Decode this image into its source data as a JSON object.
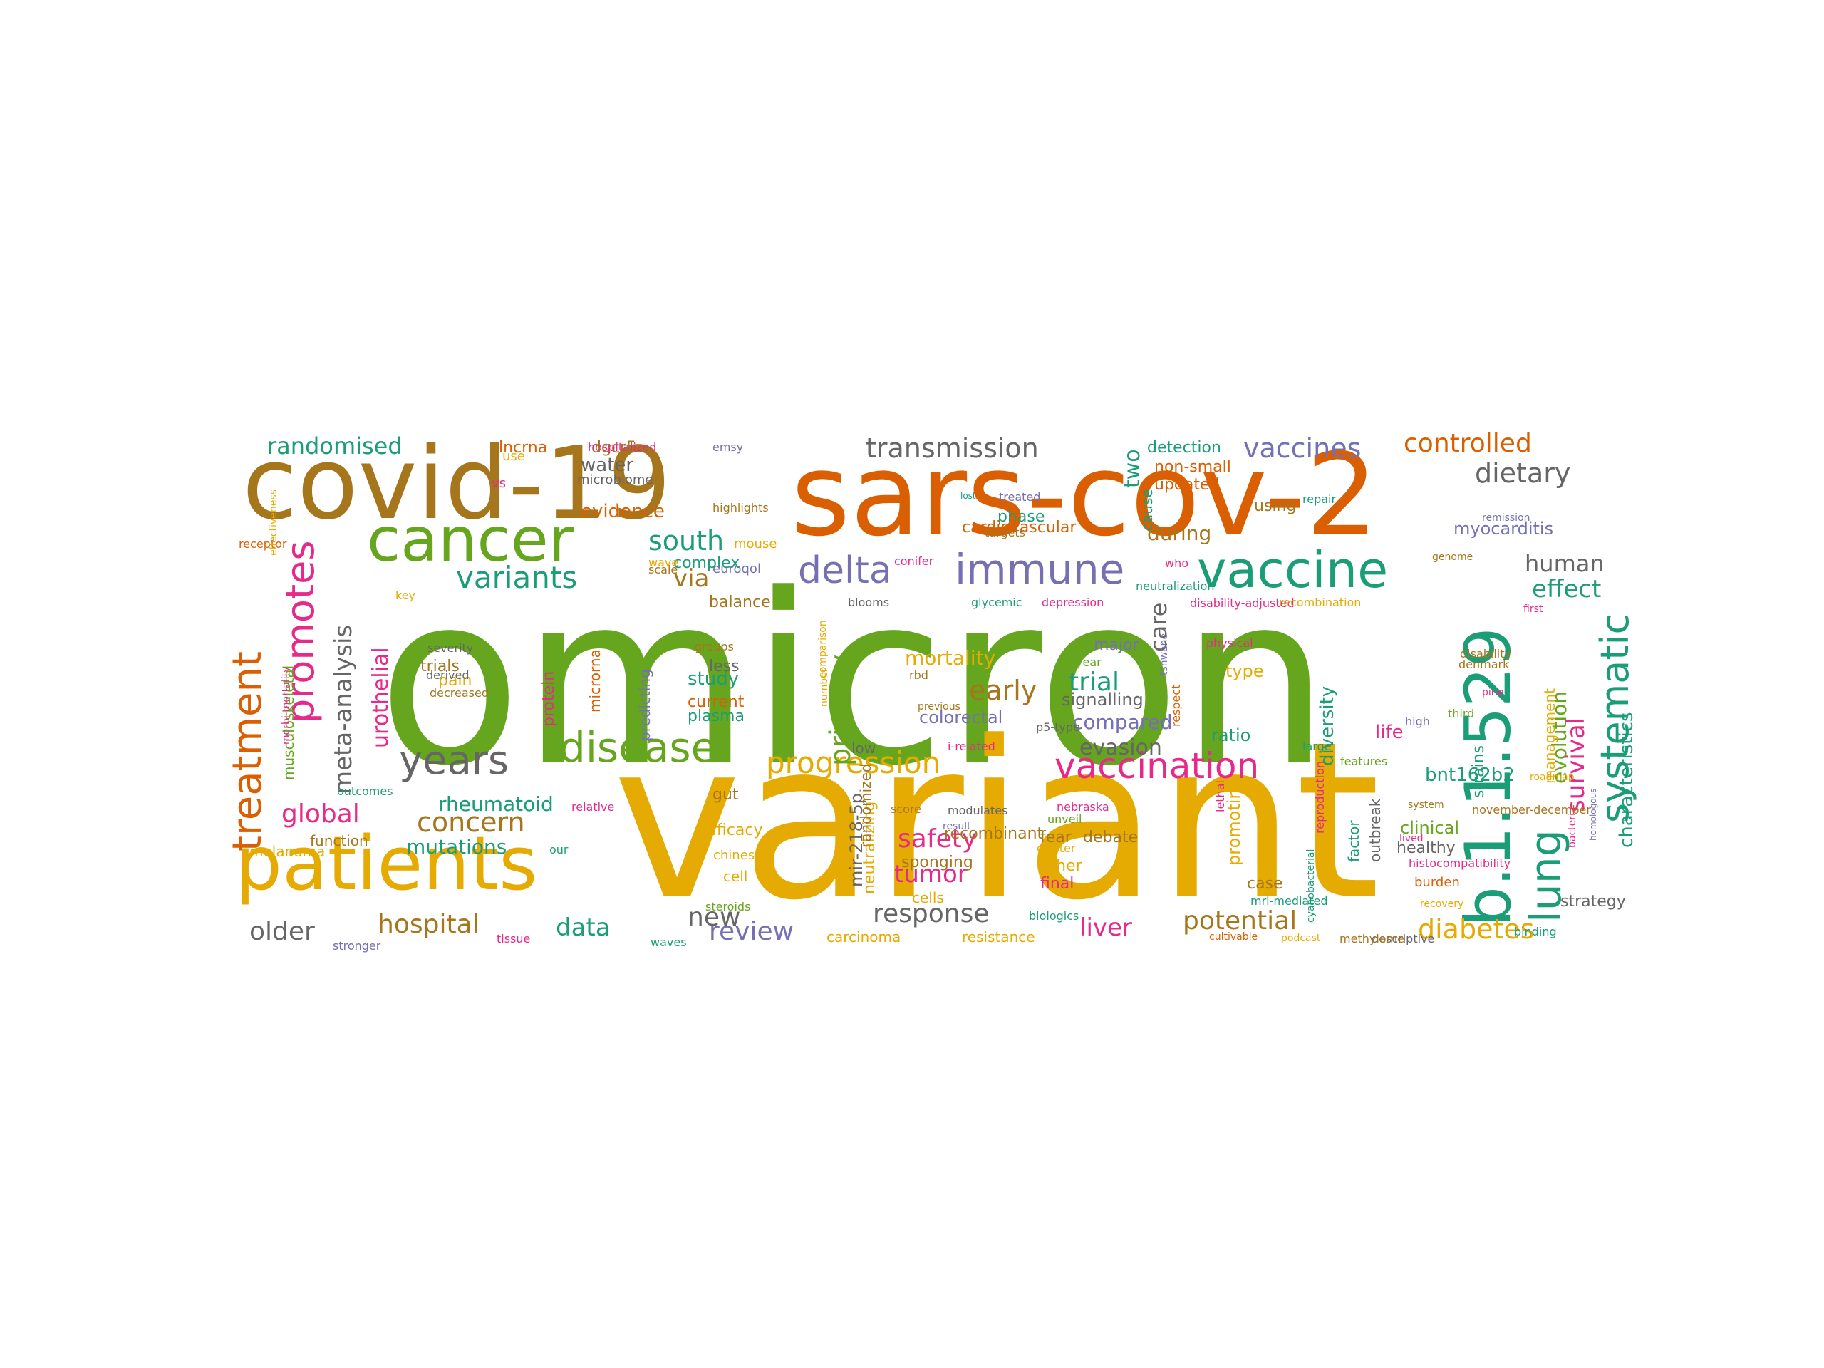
{
  "palette": {
    "green": "#66a61e",
    "orange": "#d95f02",
    "gold": "#e6ab02",
    "brown": "#a6761d",
    "teal": "#1b9e77",
    "purple": "#7570b3",
    "pink": "#e7298a",
    "gray": "#666666"
  },
  "words": [
    {
      "text": "omicron",
      "color": "green",
      "vertical": false
    },
    {
      "text": "variant",
      "color": "gold",
      "vertical": false
    },
    {
      "text": "covid-19",
      "color": "brown",
      "vertical": false
    },
    {
      "text": "sars-cov-2",
      "color": "orange",
      "vertical": false
    },
    {
      "text": "b.1.1.529",
      "color": "teal",
      "vertical": true
    },
    {
      "text": "patients",
      "color": "gold",
      "vertical": false
    },
    {
      "text": "cancer",
      "color": "green",
      "vertical": false
    },
    {
      "text": "vaccine",
      "color": "teal",
      "vertical": false
    },
    {
      "text": "disease",
      "color": "green",
      "vertical": false
    },
    {
      "text": "years",
      "color": "gray",
      "vertical": false
    },
    {
      "text": "immune",
      "color": "purple",
      "vertical": false
    },
    {
      "text": "vaccination",
      "color": "pink",
      "vertical": false
    },
    {
      "text": "delta",
      "color": "purple",
      "vertical": false
    },
    {
      "text": "progression",
      "color": "gold",
      "vertical": false
    },
    {
      "text": "treatment",
      "color": "orange",
      "vertical": true
    },
    {
      "text": "promotes",
      "color": "pink",
      "vertical": true
    },
    {
      "text": "lung",
      "color": "teal",
      "vertical": true
    },
    {
      "text": "systematic",
      "color": "teal",
      "vertical": true
    },
    {
      "text": "transmission",
      "color": "gray",
      "vertical": false
    },
    {
      "text": "controlled",
      "color": "orange",
      "vertical": false
    },
    {
      "text": "vaccines",
      "color": "purple",
      "vertical": false
    },
    {
      "text": "randomised",
      "color": "teal",
      "vertical": false
    },
    {
      "text": "dietary",
      "color": "gray",
      "vertical": false
    },
    {
      "text": "variants",
      "color": "teal",
      "vertical": false
    },
    {
      "text": "south",
      "color": "teal",
      "vertical": false
    },
    {
      "text": "via",
      "color": "brown",
      "vertical": false
    },
    {
      "text": "meta-analysis",
      "color": "gray",
      "vertical": true
    },
    {
      "text": "urothelial",
      "color": "pink",
      "vertical": true
    },
    {
      "text": "care",
      "color": "gray",
      "vertical": true
    },
    {
      "text": "two",
      "color": "teal",
      "vertical": true
    },
    {
      "text": "human",
      "color": "gray",
      "vertical": false
    },
    {
      "text": "effect",
      "color": "teal",
      "vertical": false
    },
    {
      "text": "survival",
      "color": "pink",
      "vertical": true
    },
    {
      "text": "evolution",
      "color": "green",
      "vertical": true
    },
    {
      "text": "characteristics",
      "color": "teal",
      "vertical": true
    },
    {
      "text": "diversity",
      "color": "teal",
      "vertical": true
    },
    {
      "text": "safety",
      "color": "pink",
      "vertical": false
    },
    {
      "text": "tumor",
      "color": "pink",
      "vertical": false
    },
    {
      "text": "mortality",
      "color": "gold",
      "vertical": false
    },
    {
      "text": "early",
      "color": "brown",
      "vertical": false
    },
    {
      "text": "trial",
      "color": "teal",
      "vertical": false
    },
    {
      "text": "primary",
      "color": "green",
      "vertical": true
    },
    {
      "text": "concern",
      "color": "brown",
      "vertical": false
    },
    {
      "text": "global",
      "color": "pink",
      "vertical": false
    },
    {
      "text": "rheumatoid",
      "color": "teal",
      "vertical": false
    },
    {
      "text": "mutations",
      "color": "teal",
      "vertical": false
    },
    {
      "text": "hospital",
      "color": "brown",
      "vertical": false
    },
    {
      "text": "older",
      "color": "gray",
      "vertical": false
    },
    {
      "text": "data",
      "color": "teal",
      "vertical": false
    },
    {
      "text": "new",
      "color": "gray",
      "vertical": false
    },
    {
      "text": "review",
      "color": "purple",
      "vertical": false
    },
    {
      "text": "response",
      "color": "gray",
      "vertical": false
    },
    {
      "text": "liver",
      "color": "pink",
      "vertical": false
    },
    {
      "text": "potential",
      "color": "brown",
      "vertical": false
    },
    {
      "text": "diabetes",
      "color": "gold",
      "vertical": false
    },
    {
      "text": "study",
      "color": "teal",
      "vertical": false
    },
    {
      "text": "water",
      "color": "gray",
      "vertical": false
    },
    {
      "text": "evidence",
      "color": "orange",
      "vertical": false
    },
    {
      "text": "during",
      "color": "brown",
      "vertical": false
    },
    {
      "text": "compared",
      "color": "purple",
      "vertical": false
    },
    {
      "text": "evasion",
      "color": "gray",
      "vertical": false
    },
    {
      "text": "bnt162b2",
      "color": "teal",
      "vertical": false
    },
    {
      "text": "life",
      "color": "pink",
      "vertical": false
    },
    {
      "text": "ratio",
      "color": "teal",
      "vertical": false
    },
    {
      "text": "type",
      "color": "gold",
      "vertical": false
    },
    {
      "text": "myocarditis",
      "color": "purple",
      "vertical": false
    },
    {
      "text": "using",
      "color": "brown",
      "vertical": false
    },
    {
      "text": "lncrna",
      "color": "orange",
      "vertical": false
    },
    {
      "text": "dgcr5",
      "color": "brown",
      "vertical": false
    },
    {
      "text": "detection",
      "color": "teal",
      "vertical": false
    },
    {
      "text": "non-small",
      "color": "orange",
      "vertical": false
    },
    {
      "text": "updated",
      "color": "orange",
      "vertical": false
    },
    {
      "text": "signalling",
      "color": "gray",
      "vertical": false
    },
    {
      "text": "major",
      "color": "purple",
      "vertical": false
    },
    {
      "text": "colorectal",
      "color": "purple",
      "vertical": false
    },
    {
      "text": "complex",
      "color": "teal",
      "vertical": false
    },
    {
      "text": "balance",
      "color": "brown",
      "vertical": false
    },
    {
      "text": "plasma",
      "color": "teal",
      "vertical": false
    },
    {
      "text": "current",
      "color": "orange",
      "vertical": false
    },
    {
      "text": "less",
      "color": "gray",
      "vertical": false
    },
    {
      "text": "trials",
      "color": "brown",
      "vertical": false
    },
    {
      "text": "pain",
      "color": "gold",
      "vertical": false
    },
    {
      "text": "function",
      "color": "brown",
      "vertical": false
    },
    {
      "text": "melanoma",
      "color": "gold",
      "vertical": false
    },
    {
      "text": "microbiome",
      "color": "gray",
      "vertical": false
    },
    {
      "text": "clinical",
      "color": "green",
      "vertical": false
    },
    {
      "text": "healthy",
      "color": "gray",
      "vertical": false
    },
    {
      "text": "strategy",
      "color": "gray",
      "vertical": false
    },
    {
      "text": "cells",
      "color": "gold",
      "vertical": false
    },
    {
      "text": "case",
      "color": "brown",
      "vertical": false
    },
    {
      "text": "final",
      "color": "pink",
      "vertical": false
    },
    {
      "text": "other",
      "color": "gold",
      "vertical": false
    },
    {
      "text": "fear",
      "color": "brown",
      "vertical": false
    },
    {
      "text": "debate",
      "color": "brown",
      "vertical": false
    },
    {
      "text": "phase",
      "color": "teal",
      "vertical": false
    },
    {
      "text": "cardiovascular",
      "color": "orange",
      "vertical": false
    },
    {
      "text": "efficacy",
      "color": "gold",
      "vertical": false
    },
    {
      "text": "sponging",
      "color": "brown",
      "vertical": false
    },
    {
      "text": "recombinant",
      "color": "brown",
      "vertical": false
    },
    {
      "text": "resistance",
      "color": "gold",
      "vertical": false
    },
    {
      "text": "carcinoma",
      "color": "gold",
      "vertical": false
    },
    {
      "text": "burden",
      "color": "orange",
      "vertical": false
    },
    {
      "text": "gut",
      "color": "brown",
      "vertical": false
    },
    {
      "text": "cell",
      "color": "gold",
      "vertical": false
    },
    {
      "text": "low",
      "color": "gray",
      "vertical": false
    },
    {
      "text": "mir-218-5p",
      "color": "gray",
      "vertical": true
    },
    {
      "text": "promoting",
      "color": "gold",
      "vertical": true
    },
    {
      "text": "protein",
      "color": "pink",
      "vertical": true
    },
    {
      "text": "microrna",
      "color": "orange",
      "vertical": true
    },
    {
      "text": "predicting",
      "color": "purple",
      "vertical": true
    },
    {
      "text": "neutralizing",
      "color": "gold",
      "vertical": true
    },
    {
      "text": "musculoskeletal",
      "color": "green",
      "vertical": true
    },
    {
      "text": "management",
      "color": "gold",
      "vertical": true
    },
    {
      "text": "strains",
      "color": "teal",
      "vertical": true
    },
    {
      "text": "outbreak",
      "color": "gray",
      "vertical": true
    },
    {
      "text": "factor",
      "color": "teal",
      "vertical": true
    },
    {
      "text": "randomized",
      "color": "brown",
      "vertical": true
    },
    {
      "text": "cause",
      "color": "teal",
      "vertical": true
    },
    {
      "text": "use",
      "color": "gold",
      "vertical": false
    },
    {
      "text": "vs",
      "color": "pink",
      "vertical": false
    },
    {
      "text": "hospitalized",
      "color": "pink",
      "vertical": false
    },
    {
      "text": "emsy",
      "color": "purple",
      "vertical": false
    },
    {
      "text": "highlights",
      "color": "brown",
      "vertical": false
    },
    {
      "text": "mouse",
      "color": "gold",
      "vertical": false
    },
    {
      "text": "euroqol",
      "color": "purple",
      "vertical": false
    },
    {
      "text": "scale",
      "color": "brown",
      "vertical": false
    },
    {
      "text": "wave",
      "color": "gold",
      "vertical": false
    },
    {
      "text": "conifer",
      "color": "pink",
      "vertical": false
    },
    {
      "text": "blooms",
      "color": "gray",
      "vertical": false
    },
    {
      "text": "groups",
      "color": "brown",
      "vertical": false
    },
    {
      "text": "receptor",
      "color": "orange",
      "vertical": false
    },
    {
      "text": "key",
      "color": "gold",
      "vertical": false
    },
    {
      "text": "severity",
      "color": "gray",
      "vertical": false
    },
    {
      "text": "derived",
      "color": "gray",
      "vertical": false
    },
    {
      "text": "decreased",
      "color": "brown",
      "vertical": false
    },
    {
      "text": "outcomes",
      "color": "teal",
      "vertical": false
    },
    {
      "text": "relative",
      "color": "pink",
      "vertical": false
    },
    {
      "text": "our",
      "color": "teal",
      "vertical": false
    },
    {
      "text": "stronger",
      "color": "purple",
      "vertical": false
    },
    {
      "text": "tissue",
      "color": "pink",
      "vertical": false
    },
    {
      "text": "waves",
      "color": "teal",
      "vertical": false
    },
    {
      "text": "steroids",
      "color": "green",
      "vertical": false
    },
    {
      "text": "chinese",
      "color": "gold",
      "vertical": false
    },
    {
      "text": "rbd",
      "color": "brown",
      "vertical": false
    },
    {
      "text": "previous",
      "color": "brown",
      "vertical": false
    },
    {
      "text": "i-related",
      "color": "pink",
      "vertical": false
    },
    {
      "text": "p5-type",
      "color": "gray",
      "vertical": false
    },
    {
      "text": "year",
      "color": "green",
      "vertical": false
    },
    {
      "text": "nebraska",
      "color": "pink",
      "vertical": false
    },
    {
      "text": "unveil",
      "color": "green",
      "vertical": false
    },
    {
      "text": "result",
      "color": "purple",
      "vertical": false
    },
    {
      "text": "modulates",
      "color": "gray",
      "vertical": false
    },
    {
      "text": "score",
      "color": "brown",
      "vertical": false
    },
    {
      "text": "cluster",
      "color": "gold",
      "vertical": false
    },
    {
      "text": "biologics",
      "color": "teal",
      "vertical": false
    },
    {
      "text": "treated",
      "color": "purple",
      "vertical": false
    },
    {
      "text": "targets",
      "color": "brown",
      "vertical": false
    },
    {
      "text": "glycemic",
      "color": "teal",
      "vertical": false
    },
    {
      "text": "depression",
      "color": "pink",
      "vertical": false
    },
    {
      "text": "neutralization",
      "color": "teal",
      "vertical": false
    },
    {
      "text": "who",
      "color": "pink",
      "vertical": false
    },
    {
      "text": "disability-adjusted",
      "color": "pink",
      "vertical": false
    },
    {
      "text": "recombination",
      "color": "gold",
      "vertical": false
    },
    {
      "text": "physical",
      "color": "pink",
      "vertical": false
    },
    {
      "text": "repair",
      "color": "teal",
      "vertical": false
    },
    {
      "text": "remission",
      "color": "purple",
      "vertical": false
    },
    {
      "text": "genome",
      "color": "brown",
      "vertical": false
    },
    {
      "text": "first",
      "color": "pink",
      "vertical": false
    },
    {
      "text": "disability",
      "color": "brown",
      "vertical": false
    },
    {
      "text": "denmark",
      "color": "brown",
      "vertical": false
    },
    {
      "text": "pine",
      "color": "pink",
      "vertical": false
    },
    {
      "text": "third",
      "color": "green",
      "vertical": false
    },
    {
      "text": "high",
      "color": "purple",
      "vertical": false
    },
    {
      "text": "features",
      "color": "green",
      "vertical": false
    },
    {
      "text": "roadmap",
      "color": "gold",
      "vertical": false
    },
    {
      "text": "system",
      "color": "brown",
      "vertical": false
    },
    {
      "text": "november-december",
      "color": "brown",
      "vertical": false
    },
    {
      "text": "lived",
      "color": "pink",
      "vertical": false
    },
    {
      "text": "histocompatibility",
      "color": "pink",
      "vertical": false
    },
    {
      "text": "recovery",
      "color": "gold",
      "vertical": false
    },
    {
      "text": "descriptive",
      "color": "gray",
      "vertical": false
    },
    {
      "text": "methylome",
      "color": "brown",
      "vertical": false
    },
    {
      "text": "binding",
      "color": "teal",
      "vertical": false
    },
    {
      "text": "podcast",
      "color": "gold",
      "vertical": false
    },
    {
      "text": "cultivable",
      "color": "orange",
      "vertical": false
    },
    {
      "text": "mrl-mediated",
      "color": "teal",
      "vertical": false
    },
    {
      "text": "large",
      "color": "teal",
      "vertical": false
    },
    {
      "text": "lost",
      "color": "teal",
      "vertical": false
    },
    {
      "text": "comparison",
      "color": "gold",
      "vertical": true
    },
    {
      "text": "number",
      "color": "gold",
      "vertical": true
    },
    {
      "text": "tshwane",
      "color": "purple",
      "vertical": true
    },
    {
      "text": "respect",
      "color": "orange",
      "vertical": true
    },
    {
      "text": "effectiveness",
      "color": "gold",
      "vertical": true
    },
    {
      "text": "morbi-mortality",
      "color": "pink",
      "vertical": true
    },
    {
      "text": "lethal",
      "color": "pink",
      "vertical": true
    },
    {
      "text": "reproduction",
      "color": "pink",
      "vertical": true
    },
    {
      "text": "cyanobacterial",
      "color": "teal",
      "vertical": true
    },
    {
      "text": "bacteria",
      "color": "pink",
      "vertical": true
    },
    {
      "text": "homologous",
      "color": "purple",
      "vertical": true
    },
    {
      "text": "heterotrophic",
      "color": "purple",
      "vertical": true
    }
  ]
}
